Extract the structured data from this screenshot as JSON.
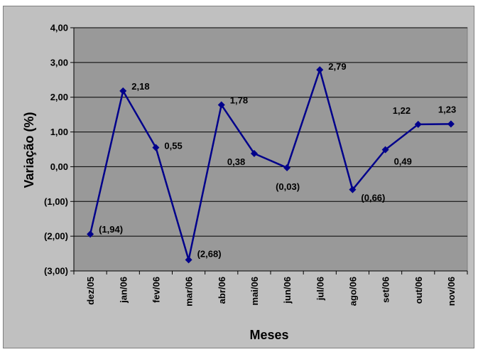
{
  "chart_data": {
    "type": "line",
    "xlabel": "Meses",
    "ylabel": "Variação (%)",
    "ylim": [
      -3,
      4
    ],
    "yticks": [
      4,
      3,
      2,
      1,
      0,
      -1,
      -2,
      -3
    ],
    "ytick_labels": [
      "4,00",
      "3,00",
      "2,00",
      "1,00",
      "0,00",
      "(1,00)",
      "(2,00)",
      "(3,00)"
    ],
    "grid": true,
    "legend": "none",
    "categories": [
      "dez/05",
      "jan/06",
      "fev/06",
      "mar/06",
      "abr/06",
      "mai/06",
      "jun/06",
      "jul/06",
      "ago/06",
      "set/06",
      "out/06",
      "nov/06"
    ],
    "series": [
      {
        "values": [
          -1.94,
          2.18,
          0.55,
          -2.68,
          1.78,
          0.38,
          -0.03,
          2.79,
          -0.66,
          0.49,
          1.22,
          1.23
        ],
        "labels": [
          "(1,94)",
          "2,18",
          "0,55",
          "(2,68)",
          "1,78",
          "0,38",
          "(0,03)",
          "2,79",
          "(0,66)",
          "0,49",
          "1,22",
          "1,23"
        ],
        "color": "#00008b"
      }
    ]
  },
  "colors": {
    "plot_background": "#999999",
    "frame_background": "#c0c0c0",
    "line": "#00008b",
    "gridline": "#000000"
  }
}
